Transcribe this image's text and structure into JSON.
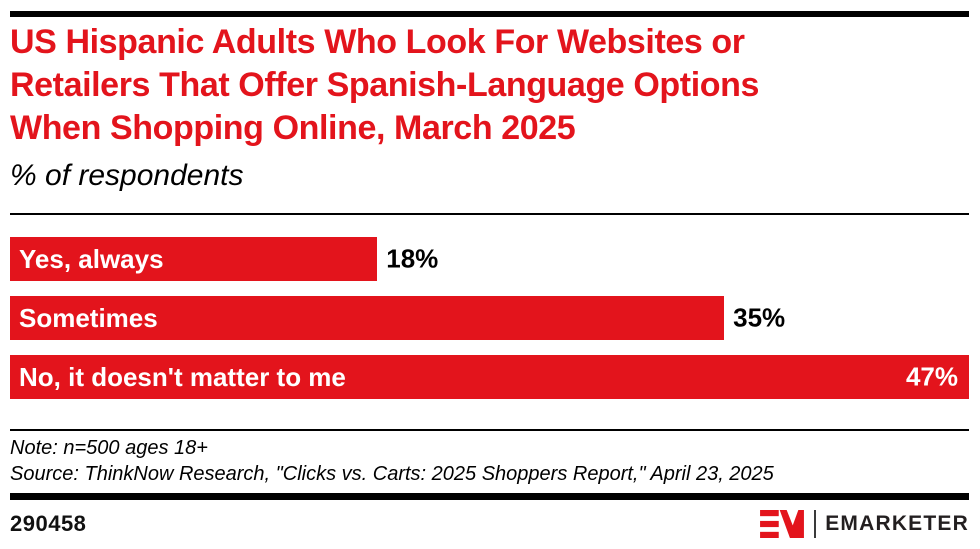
{
  "header": {
    "title_lines": [
      "US Hispanic Adults Who Look For Websites or",
      "Retailers That Offer Spanish-Language Options",
      "When Shopping Online, March 2025"
    ],
    "subtitle": "% of respondents"
  },
  "chart_data": {
    "type": "bar",
    "orientation": "horizontal",
    "title": "US Hispanic Adults Who Look For Websites or Retailers That Offer Spanish-Language Options When Shopping Online, March 2025",
    "unit_label": "% of respondents",
    "categories": [
      "Yes, always",
      "Sometimes",
      "No, it doesn't matter to me"
    ],
    "values": [
      18,
      35,
      47
    ],
    "value_labels": [
      "18%",
      "35%",
      "47%"
    ],
    "value_label_position": [
      "outside",
      "outside",
      "inside"
    ],
    "xlim": [
      0,
      47
    ],
    "grid": false,
    "legend": "none",
    "bar_color": "#E3141C"
  },
  "footer": {
    "note": "Note: n=500 ages 18+",
    "source": "Source: ThinkNow Research, \"Clicks vs. Carts: 2025 Shoppers Report,\" April 23, 2025",
    "chart_id": "290458",
    "brand_wordmark": "EMARKETER"
  },
  "colors": {
    "accent_red": "#E3141C",
    "text_black": "#000000",
    "brand_dark": "#231F20",
    "rule_black": "#000000",
    "background": "#FFFFFF"
  }
}
